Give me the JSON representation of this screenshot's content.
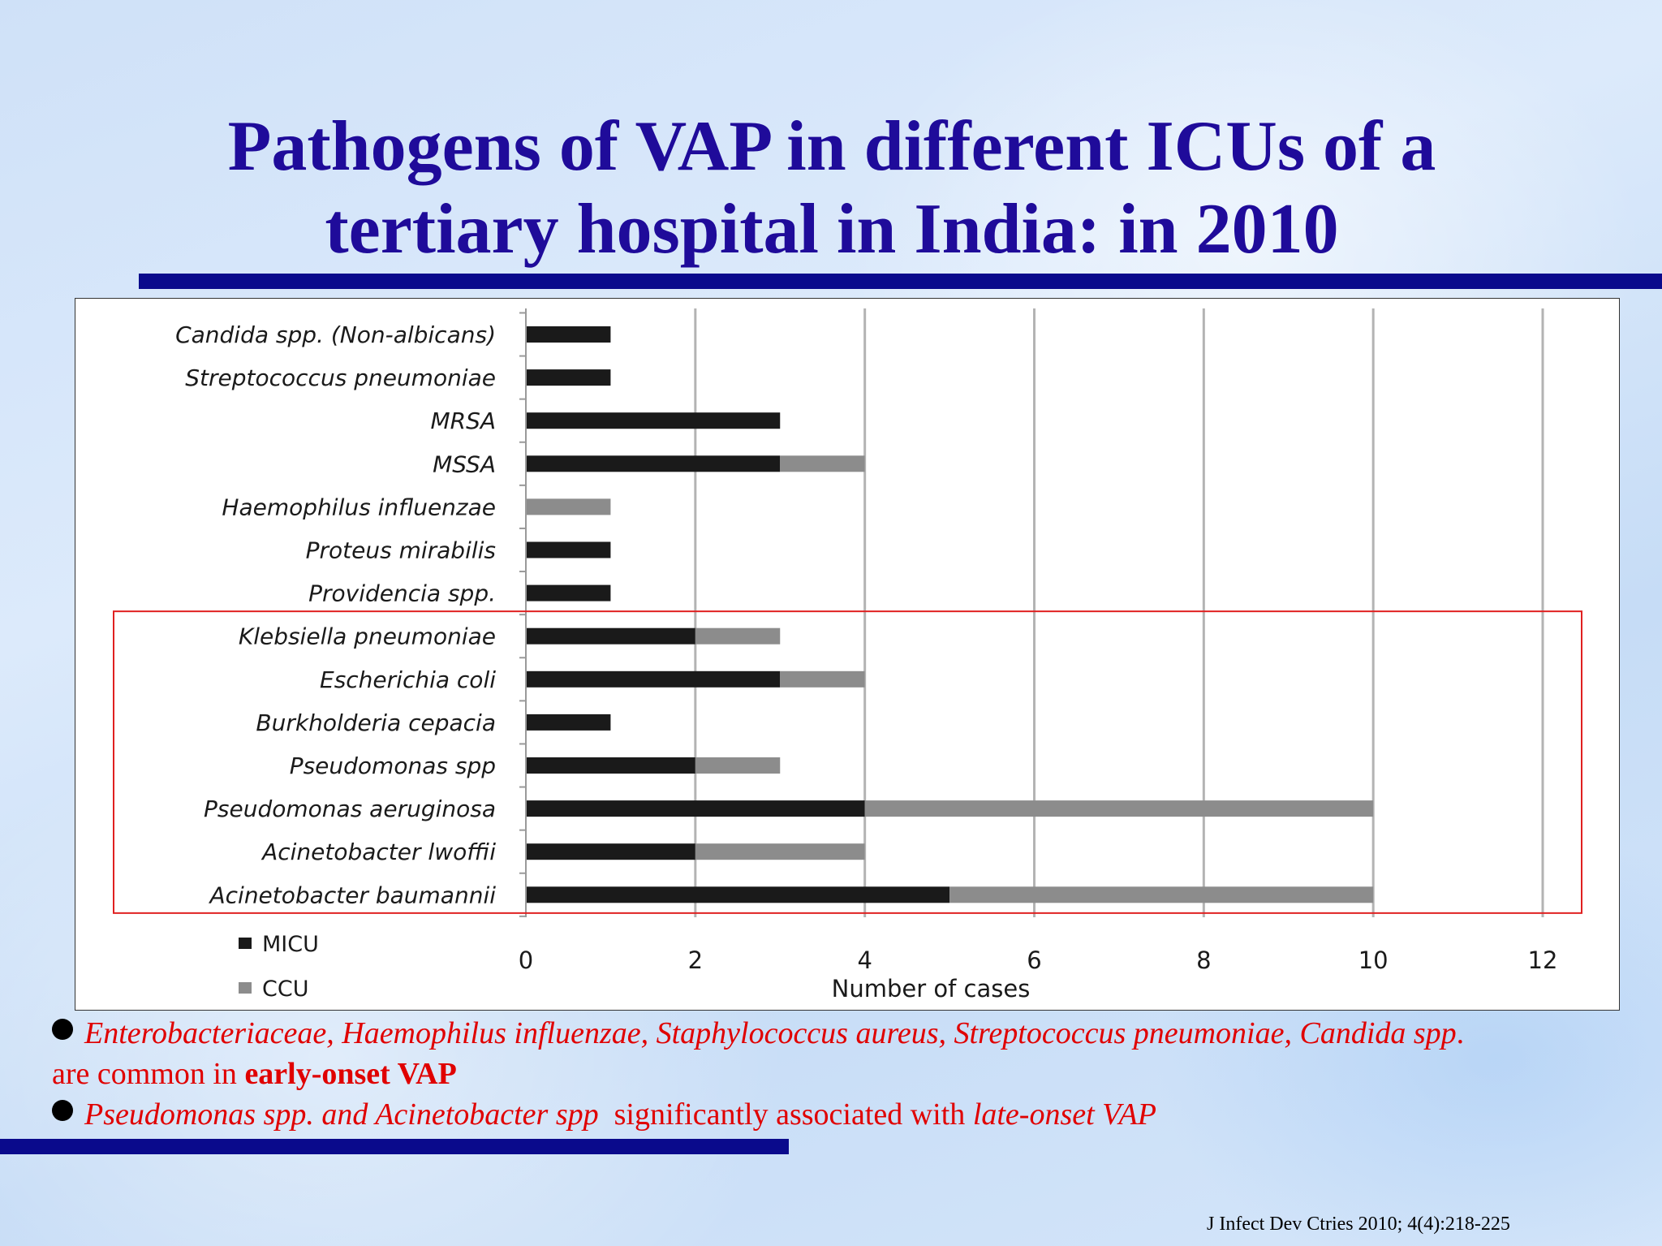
{
  "slide": {
    "title_line1": "Pathogens of VAP in different ICUs of a",
    "title_line2": "tertiary hospital in India: in 2010",
    "bullet1_italic": "Enterobacteriaceae, Haemophilus influenzae, Staphylococcus aureus, Streptococcus pneumoniae, Candida spp",
    "bullet1_dot": ".",
    "bullet1_line2_plain": "are common in ",
    "bullet1_line2_bold": "early-onset VAP",
    "bullet2_italic": "Pseudomonas spp. and Acinetobacter spp",
    "bullet2_plain": "  significantly associated with ",
    "bullet2_italic_end": "late-onset VAP",
    "citation": "J Infect Dev Ctries 2010; 4(4):218-225",
    "colors": {
      "title": "#1f0b9a",
      "rule": "#0a0a8c",
      "bullet_text": "#e00000",
      "highlight_box": "#e02020"
    }
  },
  "chart_data": {
    "type": "bar",
    "orientation": "horizontal",
    "stacked": true,
    "categories": [
      "Candida spp. (Non-albicans)",
      "Streptococcus pneumoniae",
      "MRSA",
      "MSSA",
      "Haemophilus influenzae",
      "Proteus mirabilis",
      "Providencia spp.",
      "Klebsiella pneumoniae",
      "Escherichia coli",
      "Burkholderia cepacia",
      "Pseudomonas spp",
      "Pseudomonas aeruginosa",
      "Acinetobacter lwoffii",
      "Acinetobacter baumannii"
    ],
    "series": [
      {
        "name": "MICU",
        "color": "#1a1a1a",
        "values": [
          1,
          1,
          3,
          3,
          0,
          1,
          1,
          2,
          3,
          1,
          2,
          4,
          2,
          5
        ]
      },
      {
        "name": "CCU",
        "color": "#8c8c8c",
        "values": [
          0,
          0,
          0,
          1,
          1,
          0,
          0,
          1,
          1,
          0,
          1,
          6,
          2,
          5
        ]
      }
    ],
    "xlabel": "Number of cases",
    "ylabel": "",
    "xlim": [
      0,
      12
    ],
    "xticks": [
      0,
      2,
      4,
      6,
      8,
      10,
      12
    ],
    "grid": "vertical",
    "legend": "bottom-left",
    "highlight_box_categories": [
      "Klebsiella pneumoniae",
      "Acinetobacter baumannii"
    ]
  }
}
